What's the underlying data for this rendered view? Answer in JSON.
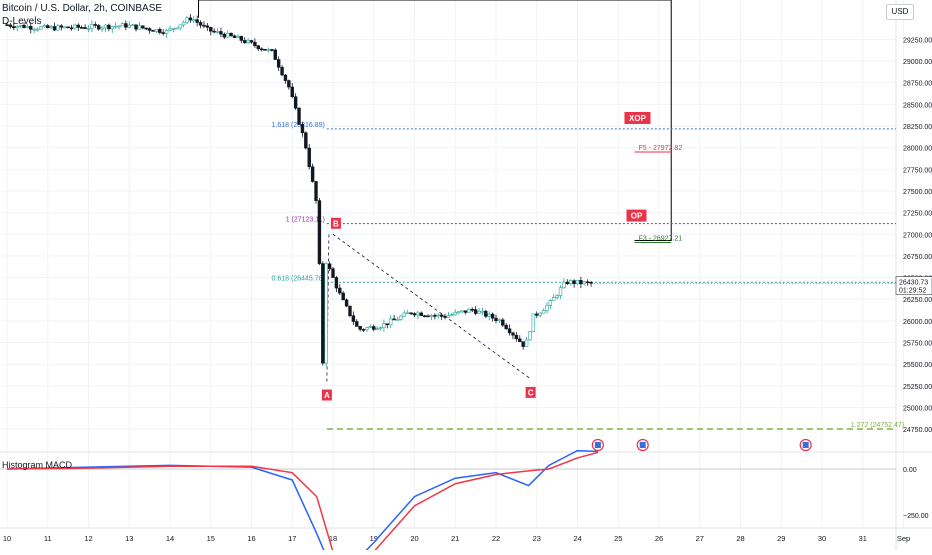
{
  "header": {
    "title": "Bitcoin / U.S. Dollar, 2h, COINBASE",
    "indicator": "D-Levels"
  },
  "currency_button": "USD",
  "macd_label": "Histogram MACD",
  "price_tag": {
    "price": "26430.73",
    "countdown": "01:29:52"
  },
  "colors": {
    "up": "#26a69a",
    "down": "#131722",
    "fib_blue": "#3a6fd8",
    "fib_purple": "#9c27b0",
    "fib_teal": "#26a69a",
    "fib_green": "#7cb342",
    "marker": "#e8334a",
    "macd_line": "#2962ff",
    "signal_line": "#f23645",
    "xop_box": "#000000"
  },
  "chart_data": {
    "type": "candlestick",
    "title": "Bitcoin / U.S. Dollar, 2h, COINBASE",
    "ylim": [
      25000,
      29500
    ],
    "y_ticks": [
      29250,
      29000,
      28750,
      28500,
      28250,
      28000,
      27750,
      27500,
      27250,
      27000,
      26750,
      26500,
      26250,
      26000,
      25750,
      25500,
      25250,
      25000,
      24750
    ],
    "x_ticks": [
      "10",
      "11",
      "12",
      "13",
      "14",
      "15",
      "16",
      "17",
      "18",
      "19",
      "20",
      "21",
      "22",
      "23",
      "24",
      "25",
      "26",
      "27",
      "28",
      "29",
      "30",
      "31",
      "Sep"
    ],
    "price_path_points": [
      {
        "day": 10.0,
        "price": 29420
      },
      {
        "day": 11.0,
        "price": 29380
      },
      {
        "day": 12.0,
        "price": 29390
      },
      {
        "day": 13.0,
        "price": 29410
      },
      {
        "day": 14.0,
        "price": 29340
      },
      {
        "day": 14.6,
        "price": 29500
      },
      {
        "day": 15.0,
        "price": 29360
      },
      {
        "day": 15.8,
        "price": 29250
      },
      {
        "day": 16.6,
        "price": 29100
      },
      {
        "day": 17.0,
        "price": 28700
      },
      {
        "day": 17.4,
        "price": 28050
      },
      {
        "day": 17.7,
        "price": 27300
      },
      {
        "day": 17.85,
        "price": 25300
      },
      {
        "day": 17.9,
        "price": 26700
      },
      {
        "day": 18.3,
        "price": 26250
      },
      {
        "day": 18.7,
        "price": 25900
      },
      {
        "day": 19.3,
        "price": 25950
      },
      {
        "day": 20.0,
        "price": 26100
      },
      {
        "day": 20.8,
        "price": 26050
      },
      {
        "day": 21.5,
        "price": 26130
      },
      {
        "day": 22.2,
        "price": 26000
      },
      {
        "day": 22.8,
        "price": 25700
      },
      {
        "day": 23.0,
        "price": 26050
      },
      {
        "day": 23.4,
        "price": 26200
      },
      {
        "day": 23.8,
        "price": 26450
      },
      {
        "day": 24.4,
        "price": 26431
      }
    ],
    "fib_levels": [
      {
        "label": "1.618 (28216.89)",
        "value": 28216.89
      },
      {
        "label": "1 (27123.11)",
        "value": 27123.11
      },
      {
        "label": "0.618 (26445.78)",
        "value": 26445.78
      },
      {
        "label": "1.272 (24752.47)",
        "value": 24752.47
      }
    ],
    "pattern_points": [
      {
        "label": "A",
        "day": 17.85,
        "price": 25300
      },
      {
        "label": "B",
        "day": 17.9,
        "price": 27000
      },
      {
        "label": "C",
        "day": 22.85,
        "price": 25330
      }
    ],
    "targets": [
      {
        "label": "XOP",
        "value": 28250
      },
      {
        "label": "OP",
        "value": 27123.11
      },
      {
        "label": "F5 - 27972.82",
        "value": 27972.82
      },
      {
        "label": "F3 - 26927.21",
        "value": 26927.21
      }
    ],
    "macd": {
      "y_ticks": [
        "0.00",
        "−250.00",
        "−500.00"
      ],
      "ylim": [
        -650,
        150
      ],
      "points": [
        {
          "day": 10,
          "macd": 0,
          "signal": 0
        },
        {
          "day": 12,
          "macd": 10,
          "signal": 5
        },
        {
          "day": 14,
          "macd": 20,
          "signal": 15
        },
        {
          "day": 16,
          "macd": 10,
          "signal": 15
        },
        {
          "day": 17,
          "macd": -60,
          "signal": -20
        },
        {
          "day": 17.6,
          "macd": -350,
          "signal": -150
        },
        {
          "day": 18.0,
          "macd": -560,
          "signal": -450
        },
        {
          "day": 18.3,
          "macd": -560,
          "signal": -530
        },
        {
          "day": 19.0,
          "macd": -400,
          "signal": -450
        },
        {
          "day": 20.0,
          "macd": -150,
          "signal": -200
        },
        {
          "day": 21.0,
          "macd": -50,
          "signal": -80
        },
        {
          "day": 22.0,
          "macd": -20,
          "signal": -30
        },
        {
          "day": 22.8,
          "macd": -90,
          "signal": -10
        },
        {
          "day": 23.3,
          "macd": 20,
          "signal": 0
        },
        {
          "day": 24.0,
          "macd": 100,
          "signal": 60
        },
        {
          "day": 24.5,
          "macd": 95,
          "signal": 90
        }
      ]
    }
  }
}
